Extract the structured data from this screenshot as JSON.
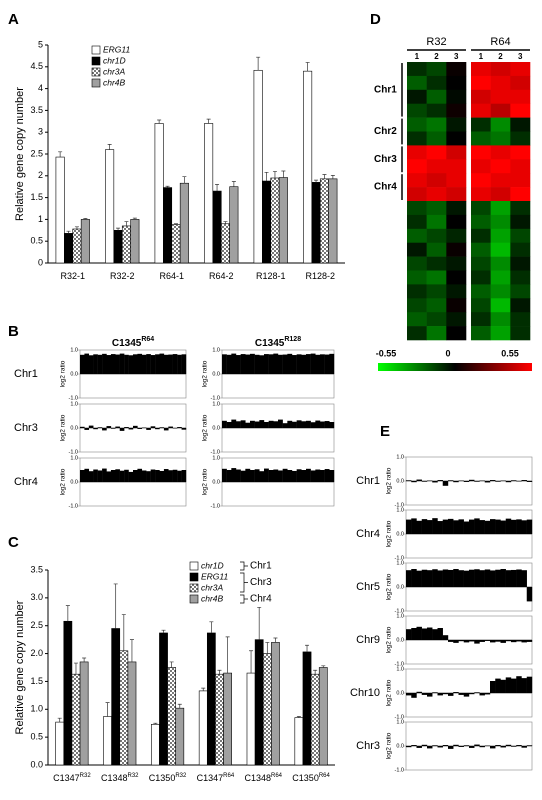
{
  "chart_data": [
    {
      "type": "bar",
      "panel_label": "A",
      "ylabel": "Relative gene copy number",
      "categories": [
        "R32-1",
        "R32-2",
        "R64-1",
        "R64-2",
        "R128-1",
        "R128-2"
      ],
      "series": [
        {
          "name": "ERG11",
          "color": "#ffffff",
          "values": [
            2.43,
            2.6,
            3.2,
            3.2,
            4.42,
            4.4
          ],
          "errors": [
            0.12,
            0.12,
            0.08,
            0.1,
            0.3,
            0.2
          ]
        },
        {
          "name": "chr1D",
          "color": "#000000",
          "values": [
            0.68,
            0.75,
            1.73,
            1.65,
            1.88,
            1.85
          ],
          "errors": [
            0.05,
            0.05,
            0.03,
            0.15,
            0.2,
            0.05
          ]
        },
        {
          "name": "chr3A",
          "color": "#cfcfcf",
          "pattern": "checker",
          "values": [
            0.78,
            0.85,
            0.88,
            0.9,
            1.95,
            1.93
          ],
          "errors": [
            0.05,
            0.1,
            0.02,
            0.05,
            0.15,
            0.1
          ]
        },
        {
          "name": "chr4B",
          "color": "#a0a0a0",
          "values": [
            1.0,
            1.0,
            1.83,
            1.75,
            1.96,
            1.93
          ],
          "errors": [
            0.02,
            0.03,
            0.15,
            0.12,
            0.15,
            0.08
          ]
        }
      ],
      "ylim": [
        0,
        5
      ],
      "yticks": [
        0,
        0.5,
        1,
        1.5,
        2,
        2.5,
        3,
        3.5,
        4,
        4.5,
        5
      ]
    },
    {
      "type": "track",
      "panel_label": "B",
      "ylabel": "log2 ratio",
      "color": "#000000",
      "columns": [
        {
          "title": "C1345",
          "sup": "R64"
        },
        {
          "title": "C1345",
          "sup": "R128"
        }
      ],
      "ylim": [
        -1,
        1
      ],
      "yticks": [
        {
          "value": 1,
          "label": "1.0"
        },
        {
          "value": 0,
          "label": "0.0"
        },
        {
          "value": -1,
          "label": "-1.0"
        }
      ],
      "rows": [
        {
          "label": "Chr1",
          "values": [
            [
              0.8,
              0.85,
              0.78,
              0.82,
              0.8,
              0.84,
              0.79,
              0.83,
              0.81,
              0.85,
              0.8,
              0.78,
              0.82,
              0.84,
              0.8,
              0.83,
              0.79,
              0.82,
              0.85,
              0.8,
              0.81,
              0.83,
              0.8,
              0.82
            ],
            [
              0.82,
              0.8,
              0.85,
              0.79,
              0.83,
              0.81,
              0.84,
              0.8,
              0.78,
              0.83,
              0.82,
              0.85,
              0.8,
              0.81,
              0.84,
              0.79,
              0.82,
              0.8,
              0.83,
              0.85,
              0.8,
              0.82,
              0.81,
              0.84
            ]
          ]
        },
        {
          "label": "Chr3",
          "values": [
            [
              0.05,
              -0.08,
              0.1,
              -0.05,
              0.03,
              -0.1,
              0.08,
              -0.03,
              0.06,
              -0.12,
              0.04,
              -0.06,
              0.09,
              -0.04,
              0.02,
              -0.08,
              0.07,
              -0.05,
              0.03,
              -0.1,
              0.06,
              -0.02,
              0.04,
              -0.07
            ],
            [
              0.3,
              0.25,
              0.35,
              0.28,
              0.32,
              0.22,
              0.3,
              0.27,
              0.33,
              0.25,
              0.3,
              0.28,
              0.35,
              0.2,
              0.3,
              0.26,
              0.32,
              0.28,
              0.3,
              0.24,
              0.31,
              0.27,
              0.29,
              0.25
            ]
          ]
        },
        {
          "label": "Chr4",
          "values": [
            [
              0.5,
              0.55,
              0.45,
              0.52,
              0.48,
              0.56,
              0.44,
              0.5,
              0.53,
              0.47,
              0.51,
              0.42,
              0.5,
              0.55,
              0.48,
              0.45,
              0.52,
              0.5,
              0.46,
              0.54,
              0.49,
              0.51,
              0.47,
              0.5
            ],
            [
              0.55,
              0.5,
              0.58,
              0.52,
              0.47,
              0.55,
              0.5,
              0.53,
              0.45,
              0.56,
              0.5,
              0.52,
              0.48,
              0.55,
              0.5,
              0.46,
              0.53,
              0.5,
              0.55,
              0.48,
              0.52,
              0.5,
              0.54,
              0.5
            ]
          ]
        }
      ]
    },
    {
      "type": "bar",
      "panel_label": "C",
      "ylabel": "Relative gene copy number",
      "categories": [
        "C1347",
        "C1348",
        "C1350",
        "C1347",
        "C1348",
        "C1350"
      ],
      "category_superscripts": [
        "R32",
        "R32",
        "R32",
        "R64",
        "R64",
        "R64"
      ],
      "series": [
        {
          "name": "chr1D",
          "color": "#ffffff",
          "values": [
            0.77,
            0.87,
            0.73,
            1.33,
            1.65,
            0.85
          ],
          "errors": [
            0.07,
            0.25,
            0.02,
            0.05,
            0.4,
            0.02
          ]
        },
        {
          "name": "ERG11",
          "color": "#000000",
          "values": [
            2.58,
            2.45,
            2.37,
            2.37,
            2.25,
            2.03
          ],
          "errors": [
            0.28,
            0.8,
            0.05,
            0.2,
            0.58,
            0.12
          ]
        },
        {
          "name": "chr3A",
          "color": "#cfcfcf",
          "pattern": "checker",
          "values": [
            1.63,
            2.05,
            1.75,
            1.63,
            2.0,
            1.63
          ],
          "errors": [
            0.2,
            0.65,
            0.1,
            0.07,
            0.2,
            0.07
          ]
        },
        {
          "name": "chr4B",
          "color": "#a0a0a0",
          "values": [
            1.85,
            1.85,
            1.02,
            1.65,
            2.2,
            1.75
          ],
          "errors": [
            0.07,
            0.4,
            0.07,
            0.65,
            0.08,
            0.03
          ]
        }
      ],
      "legend_groups": [
        {
          "label": "Chr1",
          "series": [
            0,
            0
          ]
        },
        {
          "label": "Chr3",
          "series": [
            1,
            2
          ]
        },
        {
          "label": "Chr4",
          "series": [
            3,
            3
          ]
        }
      ],
      "ylim": [
        0,
        3.5
      ],
      "yticks": [
        {
          "value": 0,
          "label": "0.0"
        },
        0.5,
        {
          "value": 1,
          "label": "1.0"
        },
        1.5,
        {
          "value": 2,
          "label": "2.0"
        },
        2.5,
        {
          "value": 3,
          "label": "3.0"
        },
        3.5
      ]
    },
    {
      "type": "heatmap",
      "panel_label": "D",
      "groups": [
        "R32",
        "R64"
      ],
      "columns": [
        "1",
        "2",
        "3"
      ],
      "row_groups": [
        {
          "label": "Chr1",
          "rows": [
            0,
            3
          ]
        },
        {
          "label": "Chr2",
          "rows": [
            4,
            5
          ]
        },
        {
          "label": "Chr3",
          "rows": [
            6,
            7
          ]
        },
        {
          "label": "Chr4",
          "rows": [
            8,
            9
          ]
        }
      ],
      "values": [
        [
          -0.1,
          -0.15,
          0.02,
          0.5,
          0.45,
          0.5
        ],
        [
          -0.2,
          -0.1,
          0.0,
          0.55,
          0.5,
          0.45
        ],
        [
          -0.05,
          -0.2,
          -0.02,
          0.45,
          0.5,
          0.5
        ],
        [
          -0.15,
          -0.1,
          0.03,
          0.5,
          0.4,
          0.55
        ],
        [
          -0.2,
          -0.25,
          -0.05,
          -0.1,
          -0.3,
          -0.05
        ],
        [
          -0.1,
          -0.2,
          0.0,
          -0.2,
          -0.25,
          -0.1
        ],
        [
          0.5,
          0.55,
          0.45,
          0.55,
          0.5,
          0.55
        ],
        [
          0.55,
          0.5,
          0.5,
          0.5,
          0.55,
          0.5
        ],
        [
          0.5,
          0.45,
          0.5,
          0.55,
          0.5,
          0.5
        ],
        [
          0.45,
          0.5,
          0.45,
          0.5,
          0.45,
          0.55
        ],
        [
          -0.15,
          -0.2,
          -0.05,
          -0.15,
          -0.35,
          -0.1
        ],
        [
          -0.1,
          -0.25,
          0.0,
          -0.2,
          -0.3,
          -0.05
        ],
        [
          -0.2,
          -0.15,
          -0.08,
          -0.1,
          -0.35,
          -0.15
        ],
        [
          -0.05,
          -0.2,
          0.02,
          -0.2,
          -0.4,
          -0.1
        ],
        [
          -0.15,
          -0.1,
          -0.05,
          -0.15,
          -0.3,
          -0.05
        ],
        [
          -0.2,
          -0.25,
          0.0,
          -0.1,
          -0.35,
          -0.1
        ],
        [
          -0.1,
          -0.15,
          -0.05,
          -0.2,
          -0.3,
          -0.15
        ],
        [
          -0.15,
          -0.2,
          0.02,
          -0.15,
          -0.4,
          -0.05
        ],
        [
          -0.2,
          -0.15,
          -0.05,
          -0.1,
          -0.3,
          -0.1
        ],
        [
          -0.1,
          -0.25,
          0.0,
          -0.2,
          -0.35,
          -0.1
        ]
      ],
      "colorbar": {
        "lim": [
          -0.55,
          0.55
        ],
        "ticks": [
          -0.55,
          0,
          0.55
        ],
        "colors": [
          "#00ff00",
          "#000000",
          "#ff0000"
        ]
      }
    },
    {
      "type": "track",
      "panel_label": "E",
      "ylabel": "log2 ratio",
      "color": "#000000",
      "ylim": [
        -1,
        1
      ],
      "yticks": [
        {
          "value": 1,
          "label": "1.0"
        },
        {
          "value": 0,
          "label": "0.0"
        },
        {
          "value": -1,
          "label": "-1.0"
        }
      ],
      "rows": [
        {
          "label": "Chr1",
          "values": [
            [
              0.03,
              -0.05,
              0.06,
              -0.03,
              0.02,
              -0.06,
              0.04,
              -0.2,
              0.03,
              -0.05,
              0.02,
              -0.04,
              0.05,
              -0.03,
              0.02,
              -0.06,
              0.04,
              -0.03,
              0.02,
              -0.05,
              0.03,
              -0.02,
              0.04,
              -0.04
            ]
          ]
        },
        {
          "label": "Chr4",
          "values": [
            [
              0.6,
              0.65,
              0.55,
              0.62,
              0.58,
              0.66,
              0.54,
              0.6,
              0.63,
              0.57,
              0.61,
              0.52,
              0.6,
              0.65,
              0.58,
              0.55,
              0.62,
              0.6,
              0.56,
              0.64,
              0.59,
              0.61,
              0.57,
              0.6
            ]
          ]
        },
        {
          "label": "Chr5",
          "values": [
            [
              0.7,
              0.75,
              0.68,
              0.72,
              0.7,
              0.74,
              0.69,
              0.73,
              0.71,
              0.75,
              0.7,
              0.68,
              0.72,
              0.74,
              0.7,
              0.73,
              0.69,
              0.72,
              0.75,
              0.7,
              0.71,
              0.73,
              0.7,
              -0.6
            ]
          ]
        },
        {
          "label": "Chr9",
          "values": [
            [
              0.45,
              0.5,
              0.55,
              0.48,
              0.52,
              0.45,
              0.5,
              0.2,
              -0.08,
              -0.12,
              -0.05,
              -0.1,
              -0.06,
              -0.15,
              -0.08,
              -0.04,
              -0.1,
              -0.07,
              -0.12,
              -0.05,
              -0.09,
              -0.06,
              -0.1,
              -0.08
            ]
          ]
        },
        {
          "label": "Chr10",
          "values": [
            [
              -0.1,
              -0.2,
              0.05,
              -0.08,
              -0.15,
              0.03,
              -0.1,
              -0.05,
              -0.12,
              0.04,
              -0.08,
              -0.15,
              -0.05,
              0.03,
              -0.1,
              -0.06,
              0.5,
              0.6,
              0.55,
              0.65,
              0.6,
              0.7,
              0.62,
              0.68
            ]
          ]
        },
        {
          "label": "Chr3",
          "values": [
            [
              -0.05,
              0.04,
              -0.08,
              0.05,
              -0.1,
              0.03,
              -0.06,
              0.04,
              -0.12,
              0.05,
              -0.04,
              0.03,
              -0.08,
              0.06,
              -0.05,
              0.02,
              -0.1,
              0.04,
              -0.06,
              0.05,
              -0.03,
              0.04,
              -0.07,
              0.03
            ]
          ]
        }
      ]
    }
  ]
}
